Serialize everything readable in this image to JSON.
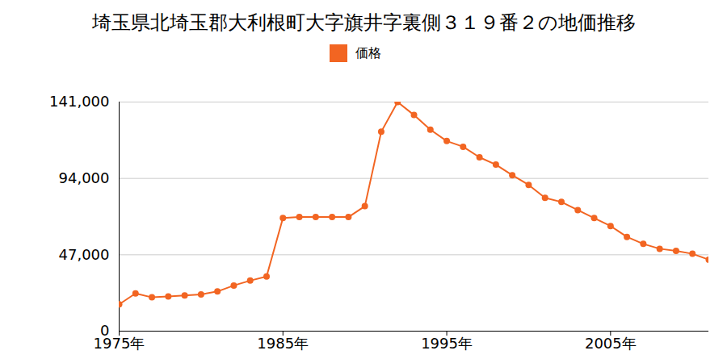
{
  "chart_data": {
    "type": "line",
    "title": "埼玉県北埼玉郡大利根町大字旗井字裏側３１９番２の地価推移",
    "x": [
      1975,
      1976,
      1977,
      1978,
      1979,
      1980,
      1981,
      1982,
      1983,
      1984,
      1985,
      1986,
      1987,
      1988,
      1989,
      1990,
      1991,
      1992,
      1993,
      1994,
      1995,
      1996,
      1997,
      1998,
      1999,
      2000,
      2001,
      2002,
      2003,
      2004,
      2005,
      2006,
      2007,
      2008,
      2009,
      2010,
      2011
    ],
    "series": [
      {
        "name": "価格",
        "color": "#f26522",
        "marker": "circle",
        "values": [
          16500,
          23200,
          20800,
          21400,
          22000,
          22600,
          24400,
          28100,
          31100,
          33600,
          69600,
          70200,
          70200,
          70200,
          70200,
          76900,
          122700,
          141000,
          133000,
          124000,
          117000,
          113500,
          107000,
          102500,
          96000,
          90000,
          82000,
          79500,
          74500,
          69600,
          64700,
          58000,
          53700,
          50700,
          49400,
          47600,
          44000
        ]
      }
    ],
    "xlim": [
      1975,
      2011
    ],
    "xticks": [
      {
        "value": 1975,
        "label": "1975年"
      },
      {
        "value": 1985,
        "label": "1985年"
      },
      {
        "value": 1995,
        "label": "1995年"
      },
      {
        "value": 2005,
        "label": "2005年"
      }
    ],
    "ylim": [
      0,
      141000
    ],
    "yticks": [
      0,
      {
        "value": 47000,
        "label": "47,000"
      },
      {
        "value": 94000,
        "label": "94,000"
      },
      {
        "value": 141000,
        "label": "141,000"
      }
    ],
    "grid": true,
    "legend": "top"
  }
}
